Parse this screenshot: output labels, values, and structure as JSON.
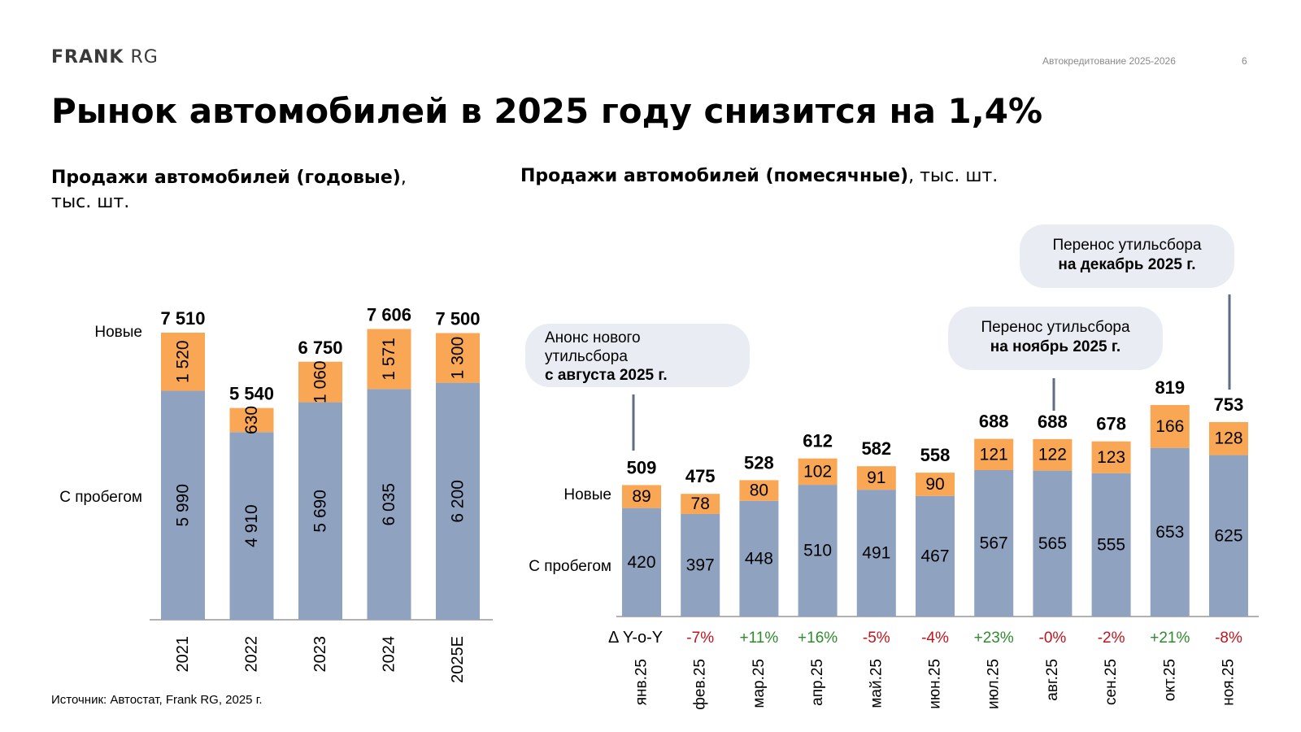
{
  "header": {
    "logo_bold": "FRANK",
    "logo_light": "RG",
    "subtitle": "Автокредитование 2025-2026",
    "page_number": "6"
  },
  "title": "Рынок автомобилей в 2025 году снизится на 1,4%",
  "left_chart_title": {
    "bold": "Продажи автомобилей (годовые)",
    "rest": ",",
    "unit": "тыс. шт."
  },
  "right_chart_title": {
    "bold": "Продажи автомобилей (помесячные)",
    "rest": ", тыс. шт."
  },
  "source": "Источник: Автостат, Frank RG, 2025 г.",
  "callouts": {
    "aug": {
      "line1": "Анонс нового",
      "line2": "утильсбора",
      "bold": "с августа 2025 г."
    },
    "nov": {
      "line1": "Перенос утильсбора",
      "bold": "на ноябрь 2025 г."
    },
    "dec": {
      "line1": "Перенос утильсбора",
      "bold": "на декабрь 2025 г."
    }
  },
  "colors": {
    "used": "#8fa3c1",
    "new": "#f9a655",
    "positive": "#2e8b2e",
    "negative": "#c0141c",
    "axis": "#999999"
  },
  "chart_data": [
    {
      "type": "bar",
      "stacked": true,
      "title": "Продажи автомобилей (годовые), тыс. шт.",
      "categories": [
        "2021",
        "2022",
        "2023",
        "2024",
        "2025E"
      ],
      "series": [
        {
          "name": "С пробегом",
          "values": [
            5990,
            4910,
            5690,
            6035,
            6200
          ],
          "labels": [
            "5 990",
            "4 910",
            "5 690",
            "6 035",
            "6 200"
          ]
        },
        {
          "name": "Новые",
          "values": [
            1520,
            630,
            1060,
            1571,
            1300
          ],
          "labels": [
            "1 520",
            "630",
            "1 060",
            "1 571",
            "1 300"
          ]
        }
      ],
      "totals": [
        "7 510",
        "5 540",
        "6 750",
        "7 606",
        "7 500"
      ],
      "legend": [
        "Новые",
        "С пробегом"
      ]
    },
    {
      "type": "bar",
      "stacked": true,
      "title": "Продажи автомобилей (помесячные), тыс. шт.",
      "categories": [
        "янв.25",
        "фев.25",
        "мар.25",
        "апр.25",
        "май.25",
        "июн.25",
        "июл.25",
        "авг.25",
        "сен.25",
        "окт.25",
        "ноя.25"
      ],
      "series": [
        {
          "name": "С пробегом",
          "values": [
            420,
            397,
            448,
            510,
            491,
            467,
            567,
            565,
            555,
            653,
            625
          ]
        },
        {
          "name": "Новые",
          "values": [
            89,
            78,
            80,
            102,
            91,
            90,
            121,
            122,
            123,
            166,
            128
          ]
        }
      ],
      "totals": [
        509,
        475,
        528,
        612,
        582,
        558,
        688,
        688,
        678,
        819,
        753
      ],
      "yoy_label": "Δ Y-o-Y",
      "yoy": [
        "",
        "-7%",
        "+11%",
        "+16%",
        "-5%",
        "-4%",
        "+23%",
        "-0%",
        "-2%",
        "+21%",
        "-8%"
      ],
      "legend": [
        "Новые",
        "С пробегом"
      ]
    }
  ]
}
